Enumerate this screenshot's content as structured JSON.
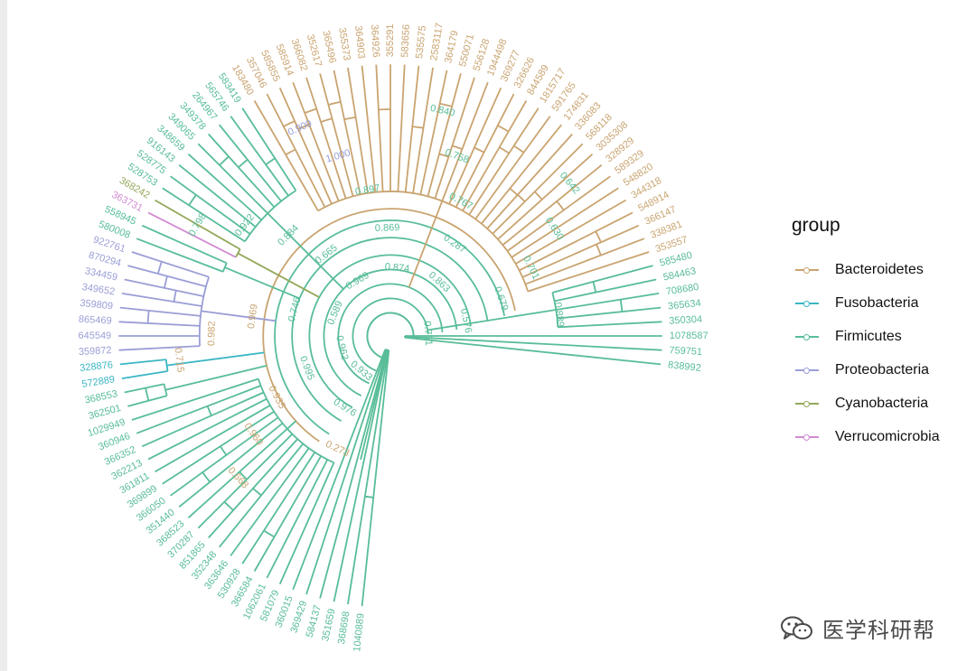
{
  "chart_data": {
    "type": "tree",
    "layout": "circular",
    "legend": {
      "title": "group",
      "entries": [
        {
          "name": "Bacteroidetes",
          "color": "#c9a470"
        },
        {
          "name": "Fusobacteria",
          "color": "#3bb6c4"
        },
        {
          "name": "Firmicutes",
          "color": "#58bd98"
        },
        {
          "name": "Proteobacteria",
          "color": "#9a9ed6"
        },
        {
          "name": "Cyanobacteria",
          "color": "#93a85a"
        },
        {
          "name": "Verrucomicrobia",
          "color": "#d28ad2"
        }
      ]
    },
    "tips": [
      {
        "id": "838992",
        "group": "Firmicutes"
      },
      {
        "id": "759751",
        "group": "Firmicutes"
      },
      {
        "id": "1078587",
        "group": "Firmicutes"
      },
      {
        "id": "350304",
        "group": "Firmicutes"
      },
      {
        "id": "365634",
        "group": "Firmicutes"
      },
      {
        "id": "708680",
        "group": "Firmicutes"
      },
      {
        "id": "584463",
        "group": "Firmicutes"
      },
      {
        "id": "585480",
        "group": "Firmicutes"
      },
      {
        "id": "353557",
        "group": "Bacteroidetes"
      },
      {
        "id": "338381",
        "group": "Bacteroidetes"
      },
      {
        "id": "366147",
        "group": "Bacteroidetes"
      },
      {
        "id": "548914",
        "group": "Bacteroidetes"
      },
      {
        "id": "344318",
        "group": "Bacteroidetes"
      },
      {
        "id": "548820",
        "group": "Bacteroidetes"
      },
      {
        "id": "589329",
        "group": "Bacteroidetes"
      },
      {
        "id": "328929",
        "group": "Bacteroidetes"
      },
      {
        "id": "3035308",
        "group": "Bacteroidetes"
      },
      {
        "id": "568118",
        "group": "Bacteroidetes"
      },
      {
        "id": "336083",
        "group": "Bacteroidetes"
      },
      {
        "id": "174831",
        "group": "Bacteroidetes"
      },
      {
        "id": "591765",
        "group": "Bacteroidetes"
      },
      {
        "id": "1815717",
        "group": "Bacteroidetes"
      },
      {
        "id": "844589",
        "group": "Bacteroidetes"
      },
      {
        "id": "326626",
        "group": "Bacteroidetes"
      },
      {
        "id": "369277",
        "group": "Bacteroidetes"
      },
      {
        "id": "1944498",
        "group": "Bacteroidetes"
      },
      {
        "id": "556128",
        "group": "Bacteroidetes"
      },
      {
        "id": "550071",
        "group": "Bacteroidetes"
      },
      {
        "id": "364179",
        "group": "Bacteroidetes"
      },
      {
        "id": "2583117",
        "group": "Bacteroidetes"
      },
      {
        "id": "535575",
        "group": "Bacteroidetes"
      },
      {
        "id": "583656",
        "group": "Bacteroidetes"
      },
      {
        "id": "355291",
        "group": "Bacteroidetes"
      },
      {
        "id": "364926",
        "group": "Bacteroidetes"
      },
      {
        "id": "364903",
        "group": "Bacteroidetes"
      },
      {
        "id": "355373",
        "group": "Bacteroidetes"
      },
      {
        "id": "365496",
        "group": "Bacteroidetes"
      },
      {
        "id": "352617",
        "group": "Bacteroidetes"
      },
      {
        "id": "366082",
        "group": "Bacteroidetes"
      },
      {
        "id": "585914",
        "group": "Bacteroidetes"
      },
      {
        "id": "585855",
        "group": "Bacteroidetes"
      },
      {
        "id": "357046",
        "group": "Bacteroidetes"
      },
      {
        "id": "183480",
        "group": "Bacteroidetes"
      },
      {
        "id": "583419",
        "group": "Firmicutes"
      },
      {
        "id": "565746",
        "group": "Firmicutes"
      },
      {
        "id": "264967",
        "group": "Firmicutes"
      },
      {
        "id": "349378",
        "group": "Firmicutes"
      },
      {
        "id": "349065",
        "group": "Firmicutes"
      },
      {
        "id": "348659",
        "group": "Firmicutes"
      },
      {
        "id": "916143",
        "group": "Firmicutes"
      },
      {
        "id": "528775",
        "group": "Firmicutes"
      },
      {
        "id": "528753",
        "group": "Firmicutes"
      },
      {
        "id": "368242",
        "group": "Cyanobacteria"
      },
      {
        "id": "363731",
        "group": "Verrucomicrobia"
      },
      {
        "id": "558945",
        "group": "Firmicutes"
      },
      {
        "id": "580008",
        "group": "Firmicutes"
      },
      {
        "id": "922761",
        "group": "Proteobacteria"
      },
      {
        "id": "870294",
        "group": "Proteobacteria"
      },
      {
        "id": "334459",
        "group": "Proteobacteria"
      },
      {
        "id": "349652",
        "group": "Proteobacteria"
      },
      {
        "id": "359809",
        "group": "Proteobacteria"
      },
      {
        "id": "865469",
        "group": "Proteobacteria"
      },
      {
        "id": "645549",
        "group": "Proteobacteria"
      },
      {
        "id": "359872",
        "group": "Proteobacteria"
      },
      {
        "id": "328876",
        "group": "Fusobacteria"
      },
      {
        "id": "572889",
        "group": "Fusobacteria"
      },
      {
        "id": "368553",
        "group": "Firmicutes"
      },
      {
        "id": "362501",
        "group": "Firmicutes"
      },
      {
        "id": "1029949",
        "group": "Firmicutes"
      },
      {
        "id": "360946",
        "group": "Firmicutes"
      },
      {
        "id": "366352",
        "group": "Firmicutes"
      },
      {
        "id": "362213",
        "group": "Firmicutes"
      },
      {
        "id": "361811",
        "group": "Firmicutes"
      },
      {
        "id": "369899",
        "group": "Firmicutes"
      },
      {
        "id": "366050",
        "group": "Firmicutes"
      },
      {
        "id": "351440",
        "group": "Firmicutes"
      },
      {
        "id": "368523",
        "group": "Firmicutes"
      },
      {
        "id": "370287",
        "group": "Firmicutes"
      },
      {
        "id": "851865",
        "group": "Firmicutes"
      },
      {
        "id": "352348",
        "group": "Firmicutes"
      },
      {
        "id": "363646",
        "group": "Firmicutes"
      },
      {
        "id": "530928",
        "group": "Firmicutes"
      },
      {
        "id": "366584",
        "group": "Firmicutes"
      },
      {
        "id": "1062061",
        "group": "Firmicutes"
      },
      {
        "id": "581079",
        "group": "Firmicutes"
      },
      {
        "id": "360015",
        "group": "Firmicutes"
      },
      {
        "id": "369429",
        "group": "Firmicutes"
      },
      {
        "id": "584137",
        "group": "Firmicutes"
      },
      {
        "id": "351659",
        "group": "Firmicutes"
      },
      {
        "id": "368698",
        "group": "Firmicutes"
      },
      {
        "id": "1040889",
        "group": "Firmicutes"
      }
    ],
    "node_labels": [
      "0.751",
      "0.576",
      "0.679",
      "0.701",
      "0.630",
      "0.642",
      "0.863",
      "0.287",
      "0.767",
      "0.758",
      "0.840",
      "0.874",
      "0.869",
      "0.897",
      "1.000",
      "0.909",
      "0.969",
      "0.665",
      "0.884",
      "0.922",
      "0.798",
      "0.589",
      "0.746",
      "0.969",
      "0.982",
      "0.715",
      "0.962",
      "0.995",
      "0.935",
      "0.960",
      "0.668",
      "0.933",
      "0.976",
      "0.273",
      "0.889"
    ]
  },
  "watermark": {
    "text": "医学科研帮"
  }
}
